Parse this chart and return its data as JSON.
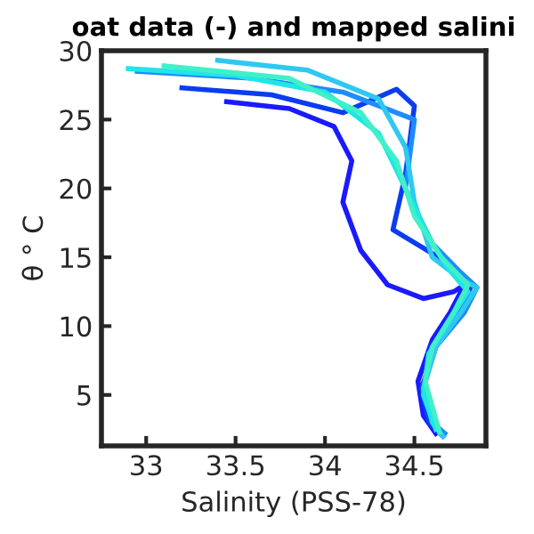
{
  "chart_data": {
    "type": "line",
    "title": "oat data (-) and mapped salini",
    "xlabel": "Salinity (PSS-78)",
    "ylabel": "θ ° C",
    "xlim": [
      32.75,
      34.9
    ],
    "ylim": [
      1.3,
      30
    ],
    "xticks": [
      33,
      {
        "value": 33.5,
        "label": "33.5"
      },
      34,
      {
        "value": 34.5,
        "label": "34.5"
      }
    ],
    "yticks": [
      5,
      10,
      15,
      20,
      25,
      30
    ],
    "grid": false,
    "line_style": "solid",
    "marker": "none",
    "series": [
      {
        "color": "#1a1aff",
        "x": [
          33.45,
          33.8,
          34.05,
          34.15,
          34.1,
          34.2,
          34.35,
          34.55,
          34.72,
          34.78,
          34.7,
          34.6,
          34.52,
          34.55,
          34.62
        ],
        "values": [
          26.3,
          25.8,
          24.5,
          22,
          19,
          15.5,
          13,
          12,
          12.5,
          13,
          11,
          9,
          6,
          3.5,
          2.2
        ]
      },
      {
        "color": "#0a3cf0",
        "x": [
          33.2,
          33.7,
          34.1,
          34.4,
          34.5,
          34.45,
          34.38,
          34.7,
          34.82,
          34.75,
          34.62,
          34.54,
          34.58,
          34.66
        ],
        "values": [
          27.3,
          26.8,
          25.5,
          27.2,
          26,
          21,
          17,
          14.5,
          13,
          11,
          8.5,
          5.5,
          3,
          2
        ]
      },
      {
        "color": "#1e8cff",
        "x": [
          32.95,
          33.6,
          34.1,
          34.5,
          34.45,
          34.6,
          34.75,
          34.85,
          34.78,
          34.62,
          34.55,
          34.6,
          34.67
        ],
        "values": [
          28.5,
          28,
          27,
          25,
          20,
          16,
          14,
          12.8,
          11,
          8.5,
          5.5,
          3,
          2.2
        ]
      },
      {
        "color": "#2fc8f0",
        "x": [
          33.4,
          33.9,
          34.3,
          34.45,
          34.5,
          34.6,
          34.75,
          34.85,
          34.76,
          34.62,
          34.55,
          34.6,
          34.66
        ],
        "values": [
          29.3,
          28.6,
          26.5,
          23,
          19,
          15,
          13.5,
          12.8,
          11,
          8.5,
          5.5,
          3,
          2
        ]
      },
      {
        "color": "#20e6e6",
        "x": [
          32.9,
          33.5,
          34.0,
          34.3,
          34.45,
          34.6,
          34.7,
          34.8,
          34.7,
          34.58,
          34.55,
          34.62
        ],
        "values": [
          28.7,
          28.2,
          27,
          24,
          20,
          16,
          14,
          12.5,
          10.5,
          8,
          5,
          2.5
        ]
      },
      {
        "color": "#40f0c8",
        "x": [
          33.1,
          33.8,
          34.2,
          34.4,
          34.5,
          34.65,
          34.8,
          34.72,
          34.6,
          34.56,
          34.64
        ],
        "values": [
          28.9,
          28,
          25.5,
          22,
          18,
          15,
          13,
          11,
          8.5,
          6,
          2.3
        ]
      }
    ]
  }
}
